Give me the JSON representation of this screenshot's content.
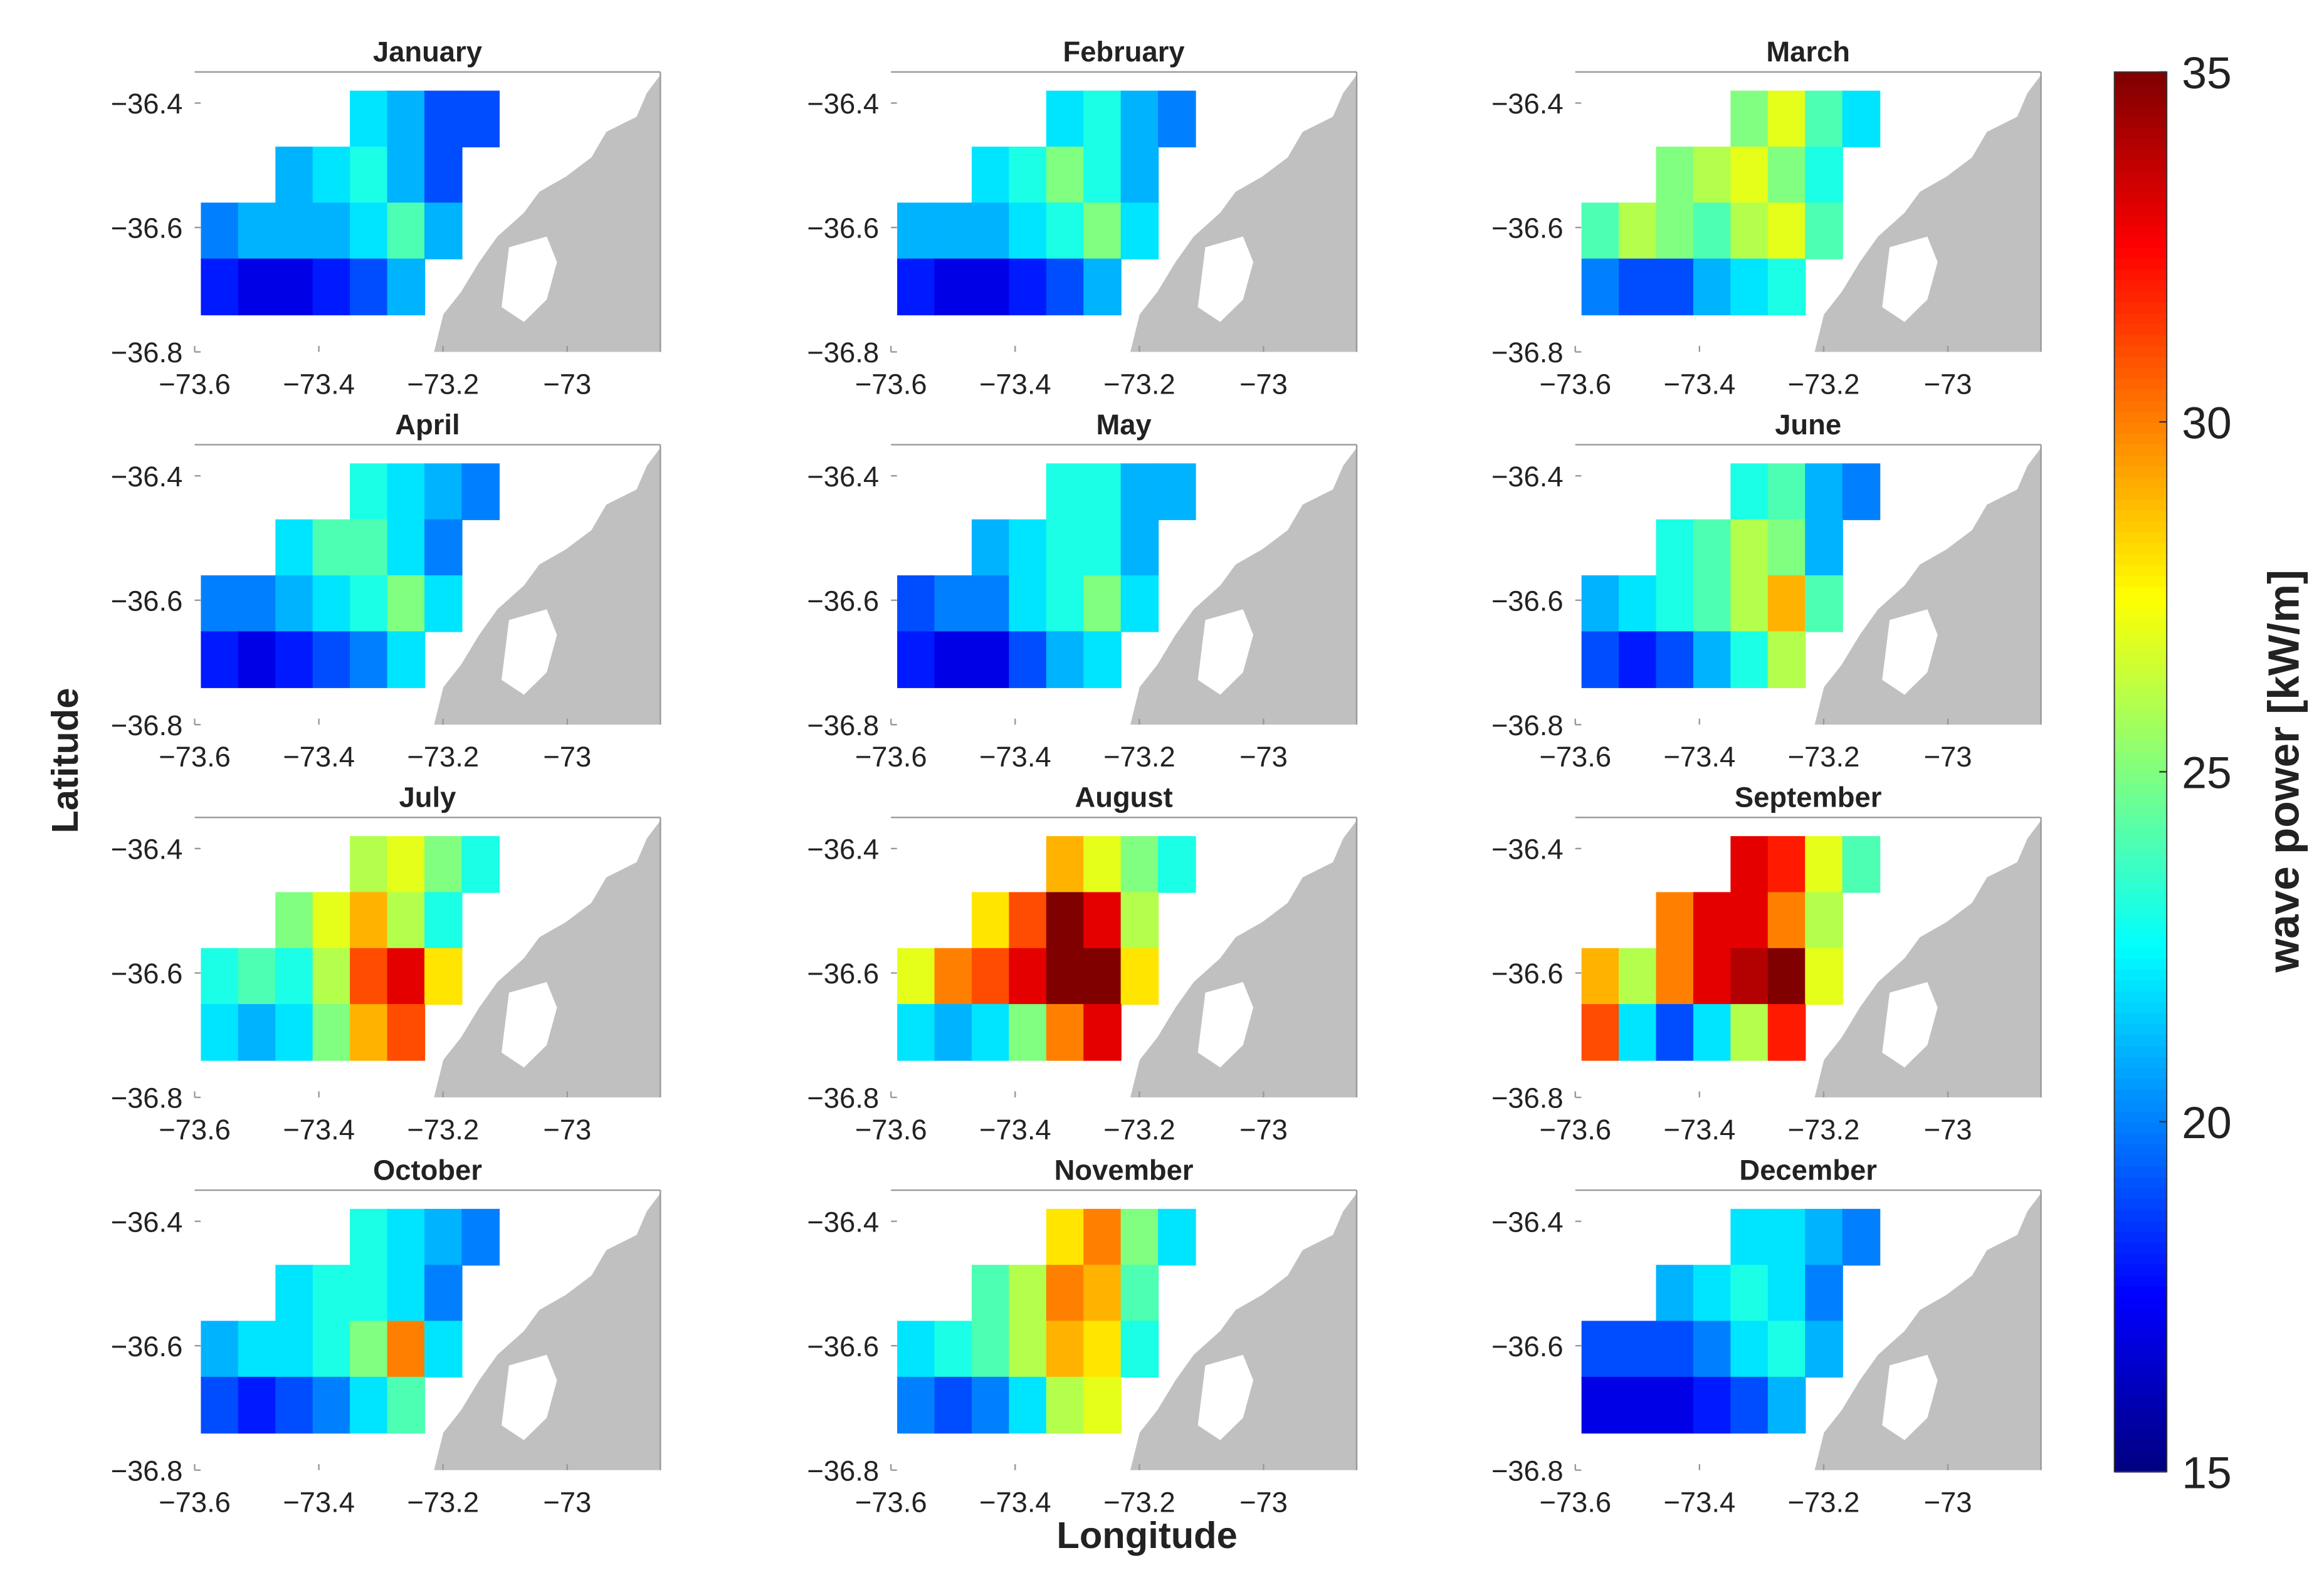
{
  "chart_data": [
    {
      "type": "heatmap",
      "title": "January",
      "x": [
        -73.56,
        -73.5,
        -73.44,
        -73.38,
        -73.32,
        -73.26,
        -73.2,
        -73.14
      ],
      "y": [
        -36.425,
        -36.515,
        -36.605,
        -36.695
      ],
      "z": [
        [
          null,
          null,
          null,
          null,
          22,
          21,
          19,
          19
        ],
        [
          null,
          null,
          21,
          22,
          23,
          21,
          19,
          null
        ],
        [
          20,
          21,
          21,
          21,
          22,
          24,
          21,
          null
        ],
        [
          18,
          17,
          17,
          18,
          19,
          21,
          null,
          null
        ]
      ],
      "xlim": [
        -73.6,
        -72.85
      ],
      "ylim": [
        -36.8,
        -36.35
      ],
      "xticks": [
        {
          "value": -73.6,
          "label": "−73.6"
        },
        {
          "value": -73.4,
          "label": "−73.4"
        },
        {
          "value": -73.2,
          "label": "−73.2"
        },
        {
          "value": -73,
          "label": "−73"
        }
      ],
      "yticks": [
        {
          "value": -36.4,
          "label": "−36.4"
        },
        {
          "value": -36.6,
          "label": "−36.6"
        },
        {
          "value": -36.8,
          "label": "−36.8"
        }
      ]
    },
    {
      "type": "heatmap",
      "title": "February",
      "x": [
        -73.56,
        -73.5,
        -73.44,
        -73.38,
        -73.32,
        -73.26,
        -73.2,
        -73.14
      ],
      "y": [
        -36.425,
        -36.515,
        -36.605,
        -36.695
      ],
      "z": [
        [
          null,
          null,
          null,
          null,
          22,
          23,
          21,
          20
        ],
        [
          null,
          null,
          22,
          23,
          25,
          23,
          21,
          null
        ],
        [
          21,
          21,
          21,
          22,
          23,
          25,
          22,
          null
        ],
        [
          18,
          17,
          17,
          18,
          19,
          21,
          null,
          null
        ]
      ],
      "xlim": [
        -73.6,
        -72.85
      ],
      "ylim": [
        -36.8,
        -36.35
      ],
      "xticks": [
        {
          "value": -73.6,
          "label": "−73.6"
        },
        {
          "value": -73.4,
          "label": "−73.4"
        },
        {
          "value": -73.2,
          "label": "−73.2"
        },
        {
          "value": -73,
          "label": "−73"
        }
      ],
      "yticks": [
        {
          "value": -36.4,
          "label": "−36.4"
        },
        {
          "value": -36.6,
          "label": "−36.6"
        },
        {
          "value": -36.8,
          "label": "−36.8"
        }
      ]
    },
    {
      "type": "heatmap",
      "title": "March",
      "x": [
        -73.56,
        -73.5,
        -73.44,
        -73.38,
        -73.32,
        -73.26,
        -73.2,
        -73.14
      ],
      "y": [
        -36.425,
        -36.515,
        -36.605,
        -36.695
      ],
      "z": [
        [
          null,
          null,
          null,
          null,
          25,
          27,
          24,
          22
        ],
        [
          null,
          null,
          25,
          26,
          27,
          25,
          23,
          null
        ],
        [
          24,
          26,
          25,
          24,
          26,
          27,
          24,
          null
        ],
        [
          20,
          19,
          19,
          21,
          22,
          23,
          null,
          null
        ]
      ],
      "xlim": [
        -73.6,
        -72.85
      ],
      "ylim": [
        -36.8,
        -36.35
      ],
      "xticks": [
        {
          "value": -73.6,
          "label": "−73.6"
        },
        {
          "value": -73.4,
          "label": "−73.4"
        },
        {
          "value": -73.2,
          "label": "−73.2"
        },
        {
          "value": -73,
          "label": "−73"
        }
      ],
      "yticks": [
        {
          "value": -36.4,
          "label": "−36.4"
        },
        {
          "value": -36.6,
          "label": "−36.6"
        },
        {
          "value": -36.8,
          "label": "−36.8"
        }
      ]
    },
    {
      "type": "heatmap",
      "title": "April",
      "x": [
        -73.56,
        -73.5,
        -73.44,
        -73.38,
        -73.32,
        -73.26,
        -73.2,
        -73.14
      ],
      "y": [
        -36.425,
        -36.515,
        -36.605,
        -36.695
      ],
      "z": [
        [
          null,
          null,
          null,
          null,
          23,
          22,
          21,
          20
        ],
        [
          null,
          null,
          22,
          24,
          24,
          22,
          20,
          null
        ],
        [
          20,
          20,
          21,
          22,
          23,
          25,
          22,
          null
        ],
        [
          18,
          17,
          18,
          19,
          20,
          22,
          null,
          null
        ]
      ],
      "xlim": [
        -73.6,
        -72.85
      ],
      "ylim": [
        -36.8,
        -36.35
      ],
      "xticks": [
        {
          "value": -73.6,
          "label": "−73.6"
        },
        {
          "value": -73.4,
          "label": "−73.4"
        },
        {
          "value": -73.2,
          "label": "−73.2"
        },
        {
          "value": -73,
          "label": "−73"
        }
      ],
      "yticks": [
        {
          "value": -36.4,
          "label": "−36.4"
        },
        {
          "value": -36.6,
          "label": "−36.6"
        },
        {
          "value": -36.8,
          "label": "−36.8"
        }
      ]
    },
    {
      "type": "heatmap",
      "title": "May",
      "x": [
        -73.56,
        -73.5,
        -73.44,
        -73.38,
        -73.32,
        -73.26,
        -73.2,
        -73.14
      ],
      "y": [
        -36.425,
        -36.515,
        -36.605,
        -36.695
      ],
      "z": [
        [
          null,
          null,
          null,
          null,
          23,
          23,
          21,
          21
        ],
        [
          null,
          null,
          21,
          22,
          23,
          23,
          21,
          null
        ],
        [
          19,
          20,
          20,
          22,
          23,
          25,
          22,
          null
        ],
        [
          18,
          17,
          17,
          19,
          21,
          22,
          null,
          null
        ]
      ],
      "xlim": [
        -73.6,
        -72.85
      ],
      "ylim": [
        -36.8,
        -36.35
      ],
      "xticks": [
        {
          "value": -73.6,
          "label": "−73.6"
        },
        {
          "value": -73.4,
          "label": "−73.4"
        },
        {
          "value": -73.2,
          "label": "−73.2"
        },
        {
          "value": -73,
          "label": "−73"
        }
      ],
      "yticks": [
        {
          "value": -36.4,
          "label": "−36.4"
        },
        {
          "value": -36.6,
          "label": "−36.6"
        },
        {
          "value": -36.8,
          "label": "−36.8"
        }
      ]
    },
    {
      "type": "heatmap",
      "title": "June",
      "x": [
        -73.56,
        -73.5,
        -73.44,
        -73.38,
        -73.32,
        -73.26,
        -73.2,
        -73.14
      ],
      "y": [
        -36.425,
        -36.515,
        -36.605,
        -36.695
      ],
      "z": [
        [
          null,
          null,
          null,
          null,
          23,
          24,
          21,
          20
        ],
        [
          null,
          null,
          23,
          24,
          26,
          25,
          21,
          null
        ],
        [
          21,
          22,
          23,
          24,
          26,
          29,
          24,
          null
        ],
        [
          19,
          18,
          19,
          21,
          23,
          26,
          null,
          null
        ]
      ],
      "xlim": [
        -73.6,
        -72.85
      ],
      "ylim": [
        -36.8,
        -36.35
      ],
      "xticks": [
        {
          "value": -73.6,
          "label": "−73.6"
        },
        {
          "value": -73.4,
          "label": "−73.4"
        },
        {
          "value": -73.2,
          "label": "−73.2"
        },
        {
          "value": -73,
          "label": "−73"
        }
      ],
      "yticks": [
        {
          "value": -36.4,
          "label": "−36.4"
        },
        {
          "value": -36.6,
          "label": "−36.6"
        },
        {
          "value": -36.8,
          "label": "−36.8"
        }
      ]
    },
    {
      "type": "heatmap",
      "title": "July",
      "x": [
        -73.56,
        -73.5,
        -73.44,
        -73.38,
        -73.32,
        -73.26,
        -73.2,
        -73.14
      ],
      "y": [
        -36.425,
        -36.515,
        -36.605,
        -36.695
      ],
      "z": [
        [
          null,
          null,
          null,
          null,
          26,
          27,
          25,
          23
        ],
        [
          null,
          null,
          25,
          27,
          29,
          26,
          23,
          null
        ],
        [
          23,
          24,
          23,
          26,
          31,
          33,
          28,
          null
        ],
        [
          22,
          21,
          22,
          25,
          29,
          31,
          null,
          null
        ]
      ],
      "xlim": [
        -73.6,
        -72.85
      ],
      "ylim": [
        -36.8,
        -36.35
      ],
      "xticks": [
        {
          "value": -73.6,
          "label": "−73.6"
        },
        {
          "value": -73.4,
          "label": "−73.4"
        },
        {
          "value": -73.2,
          "label": "−73.2"
        },
        {
          "value": -73,
          "label": "−73"
        }
      ],
      "yticks": [
        {
          "value": -36.4,
          "label": "−36.4"
        },
        {
          "value": -36.6,
          "label": "−36.6"
        },
        {
          "value": -36.8,
          "label": "−36.8"
        }
      ]
    },
    {
      "type": "heatmap",
      "title": "August",
      "x": [
        -73.56,
        -73.5,
        -73.44,
        -73.38,
        -73.32,
        -73.26,
        -73.2,
        -73.14
      ],
      "y": [
        -36.425,
        -36.515,
        -36.605,
        -36.695
      ],
      "z": [
        [
          null,
          null,
          null,
          null,
          29,
          27,
          25,
          23
        ],
        [
          null,
          null,
          28,
          31,
          35,
          33,
          26,
          null
        ],
        [
          27,
          30,
          31,
          33,
          35,
          35,
          28,
          null
        ],
        [
          22,
          21,
          22,
          25,
          30,
          33,
          null,
          null
        ]
      ],
      "xlim": [
        -73.6,
        -72.85
      ],
      "ylim": [
        -36.8,
        -36.35
      ],
      "xticks": [
        {
          "value": -73.6,
          "label": "−73.6"
        },
        {
          "value": -73.4,
          "label": "−73.4"
        },
        {
          "value": -73.2,
          "label": "−73.2"
        },
        {
          "value": -73,
          "label": "−73"
        }
      ],
      "yticks": [
        {
          "value": -36.4,
          "label": "−36.4"
        },
        {
          "value": -36.6,
          "label": "−36.6"
        },
        {
          "value": -36.8,
          "label": "−36.8"
        }
      ]
    },
    {
      "type": "heatmap",
      "title": "September",
      "x": [
        -73.56,
        -73.5,
        -73.44,
        -73.38,
        -73.32,
        -73.26,
        -73.2,
        -73.14
      ],
      "y": [
        -36.425,
        -36.515,
        -36.605,
        -36.695
      ],
      "z": [
        [
          null,
          null,
          null,
          null,
          33,
          32,
          27,
          24
        ],
        [
          null,
          null,
          30,
          33,
          33,
          30,
          26,
          null
        ],
        [
          29,
          26,
          30,
          33,
          34,
          35,
          27,
          null
        ],
        [
          31,
          22,
          19,
          22,
          26,
          32,
          null,
          null
        ]
      ],
      "xlim": [
        -73.6,
        -72.85
      ],
      "ylim": [
        -36.8,
        -36.35
      ],
      "xticks": [
        {
          "value": -73.6,
          "label": "−73.6"
        },
        {
          "value": -73.4,
          "label": "−73.4"
        },
        {
          "value": -73.2,
          "label": "−73.2"
        },
        {
          "value": -73,
          "label": "−73"
        }
      ],
      "yticks": [
        {
          "value": -36.4,
          "label": "−36.4"
        },
        {
          "value": -36.6,
          "label": "−36.6"
        },
        {
          "value": -36.8,
          "label": "−36.8"
        }
      ]
    },
    {
      "type": "heatmap",
      "title": "October",
      "x": [
        -73.56,
        -73.5,
        -73.44,
        -73.38,
        -73.32,
        -73.26,
        -73.2,
        -73.14
      ],
      "y": [
        -36.425,
        -36.515,
        -36.605,
        -36.695
      ],
      "z": [
        [
          null,
          null,
          null,
          null,
          23,
          22,
          21,
          20
        ],
        [
          null,
          null,
          22,
          23,
          23,
          22,
          20,
          null
        ],
        [
          21,
          22,
          22,
          23,
          25,
          30,
          22,
          null
        ],
        [
          19,
          18,
          19,
          20,
          22,
          24,
          null,
          null
        ]
      ],
      "xlim": [
        -73.6,
        -72.85
      ],
      "ylim": [
        -36.8,
        -36.35
      ],
      "xticks": [
        {
          "value": -73.6,
          "label": "−73.6"
        },
        {
          "value": -73.4,
          "label": "−73.4"
        },
        {
          "value": -73.2,
          "label": "−73.2"
        },
        {
          "value": -73,
          "label": "−73"
        }
      ],
      "yticks": [
        {
          "value": -36.4,
          "label": "−36.4"
        },
        {
          "value": -36.6,
          "label": "−36.6"
        },
        {
          "value": -36.8,
          "label": "−36.8"
        }
      ]
    },
    {
      "type": "heatmap",
      "title": "November",
      "x": [
        -73.56,
        -73.5,
        -73.44,
        -73.38,
        -73.32,
        -73.26,
        -73.2,
        -73.14
      ],
      "y": [
        -36.425,
        -36.515,
        -36.605,
        -36.695
      ],
      "z": [
        [
          null,
          null,
          null,
          null,
          28,
          30,
          25,
          22
        ],
        [
          null,
          null,
          24,
          26,
          30,
          29,
          24,
          null
        ],
        [
          22,
          23,
          24,
          26,
          29,
          28,
          23,
          null
        ],
        [
          20,
          19,
          20,
          22,
          26,
          27,
          null,
          null
        ]
      ],
      "xlim": [
        -73.6,
        -72.85
      ],
      "ylim": [
        -36.8,
        -36.35
      ],
      "xticks": [
        {
          "value": -73.6,
          "label": "−73.6"
        },
        {
          "value": -73.4,
          "label": "−73.4"
        },
        {
          "value": -73.2,
          "label": "−73.2"
        },
        {
          "value": -73,
          "label": "−73"
        }
      ],
      "yticks": [
        {
          "value": -36.4,
          "label": "−36.4"
        },
        {
          "value": -36.6,
          "label": "−36.6"
        },
        {
          "value": -36.8,
          "label": "−36.8"
        }
      ]
    },
    {
      "type": "heatmap",
      "title": "December",
      "x": [
        -73.56,
        -73.5,
        -73.44,
        -73.38,
        -73.32,
        -73.26,
        -73.2,
        -73.14
      ],
      "y": [
        -36.425,
        -36.515,
        -36.605,
        -36.695
      ],
      "z": [
        [
          null,
          null,
          null,
          null,
          22,
          22,
          21,
          20
        ],
        [
          null,
          null,
          21,
          22,
          23,
          22,
          20,
          null
        ],
        [
          19,
          19,
          19,
          20,
          22,
          23,
          21,
          null
        ],
        [
          17,
          17,
          17,
          18,
          19,
          21,
          null,
          null
        ]
      ],
      "xlim": [
        -73.6,
        -72.85
      ],
      "ylim": [
        -36.8,
        -36.35
      ],
      "xticks": [
        {
          "value": -73.6,
          "label": "−73.6"
        },
        {
          "value": -73.4,
          "label": "−73.4"
        },
        {
          "value": -73.2,
          "label": "−73.2"
        },
        {
          "value": -73,
          "label": "−73"
        }
      ],
      "yticks": [
        {
          "value": -36.4,
          "label": "−36.4"
        },
        {
          "value": -36.6,
          "label": "−36.6"
        },
        {
          "value": -36.8,
          "label": "−36.8"
        }
      ]
    }
  ],
  "xlabel": "Longitude",
  "ylabel": "Latitude",
  "colorbar": {
    "label": "wave power [kW/m]",
    "clim": [
      15,
      35
    ],
    "ticks": [
      15,
      20,
      25,
      30,
      35
    ],
    "colormap": "jet"
  }
}
